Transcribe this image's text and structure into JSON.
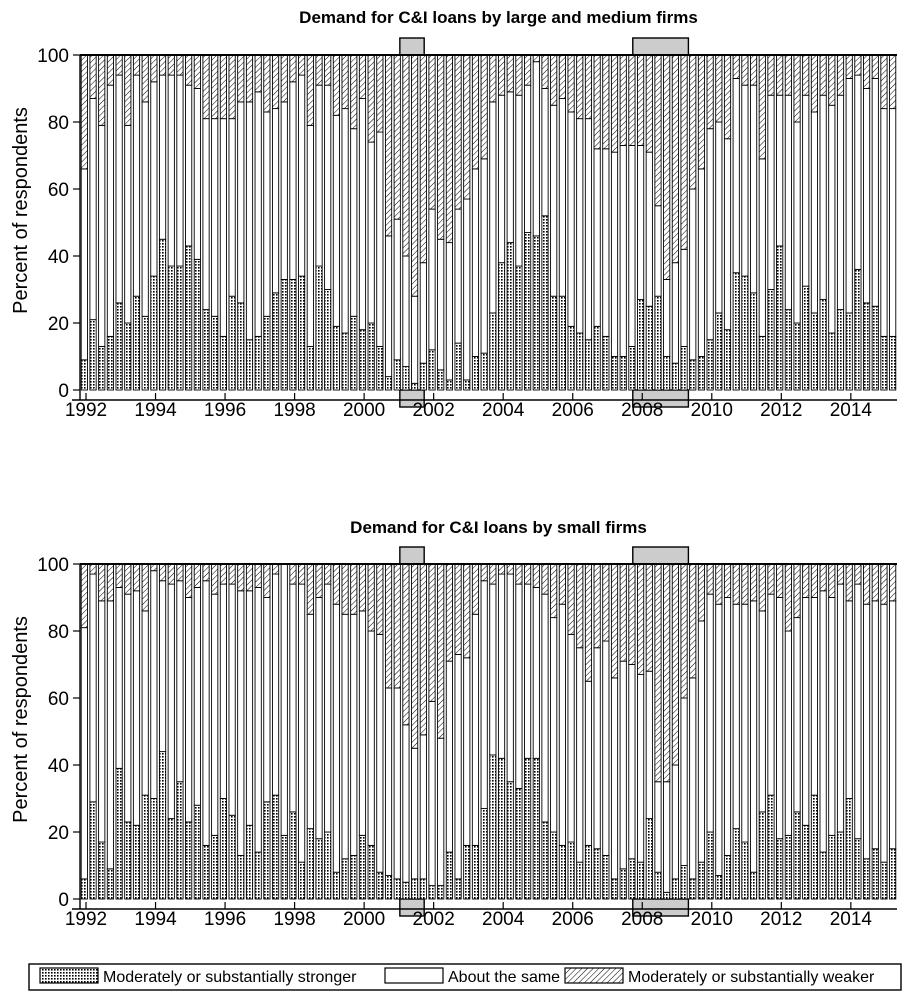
{
  "colors": {
    "ink": "#000000",
    "recession": "#cccccc",
    "background": "#ffffff"
  },
  "legend": {
    "items": [
      {
        "label": "Moderately or substantially stronger",
        "pattern": "dots"
      },
      {
        "label": "About the same",
        "pattern": "white"
      },
      {
        "label": "Moderately or substantially weaker",
        "pattern": "hatch"
      }
    ]
  },
  "chart_data": [
    {
      "type": "bar",
      "stacked": true,
      "title": "Demand for C&I loans by large and medium firms",
      "ylabel": "Percent of respondents",
      "xlabel": "",
      "xlim": [
        1992,
        2015.5
      ],
      "ylim": [
        0,
        100
      ],
      "x_ticks": [
        "1992",
        "1994",
        "1996",
        "1998",
        "2000",
        "2002",
        "2004",
        "2006",
        "2008",
        "2010",
        "2012",
        "2014"
      ],
      "y_ticks": [
        "0",
        "20",
        "40",
        "60",
        "80",
        "100"
      ],
      "grid": false,
      "recessions": [
        [
          2001.2,
          2001.9
        ],
        [
          2007.9,
          2009.5
        ]
      ],
      "x": [
        1992.0,
        1992.25,
        1992.5,
        1992.75,
        1993.0,
        1993.25,
        1993.5,
        1993.75,
        1994.0,
        1994.25,
        1994.5,
        1994.75,
        1995.0,
        1995.25,
        1995.5,
        1995.75,
        1996.0,
        1996.25,
        1996.5,
        1996.75,
        1997.0,
        1997.25,
        1997.5,
        1997.75,
        1998.0,
        1998.25,
        1998.5,
        1998.75,
        1999.0,
        1999.25,
        1999.5,
        1999.75,
        2000.0,
        2000.25,
        2000.5,
        2000.75,
        2001.0,
        2001.25,
        2001.5,
        2001.75,
        2002.0,
        2002.25,
        2002.5,
        2002.75,
        2003.0,
        2003.25,
        2003.5,
        2003.75,
        2004.0,
        2004.25,
        2004.5,
        2004.75,
        2005.0,
        2005.25,
        2005.5,
        2005.75,
        2006.0,
        2006.25,
        2006.5,
        2006.75,
        2007.0,
        2007.25,
        2007.5,
        2007.75,
        2008.0,
        2008.25,
        2008.5,
        2008.75,
        2009.0,
        2009.25,
        2009.5,
        2009.75,
        2010.0,
        2010.25,
        2010.5,
        2010.75,
        2011.0,
        2011.25,
        2011.5,
        2011.75,
        2012.0,
        2012.25,
        2012.5,
        2012.75,
        2013.0,
        2013.25,
        2013.5,
        2013.75,
        2014.0,
        2014.25,
        2014.5,
        2014.75,
        2015.0,
        2015.25
      ],
      "series": [
        {
          "name": "Moderately or substantially stronger",
          "pattern": "dots",
          "values": [
            9,
            21,
            13,
            16,
            26,
            20,
            28,
            22,
            34,
            45,
            37,
            37,
            43,
            39,
            24,
            22,
            16,
            28,
            26,
            15,
            16,
            22,
            29,
            33,
            33,
            34,
            13,
            37,
            30,
            19,
            17,
            22,
            18,
            20,
            13,
            4,
            9,
            7,
            2,
            8,
            12,
            6,
            3,
            14,
            3,
            10,
            11,
            23,
            38,
            44,
            37,
            47,
            46,
            52,
            28,
            28,
            19,
            17,
            15,
            19,
            16,
            10,
            10,
            13,
            27,
            25,
            28,
            10,
            8,
            13,
            9,
            10,
            15,
            23,
            18,
            35,
            34,
            29,
            16,
            30,
            43,
            24,
            20,
            31,
            23,
            27,
            17,
            24,
            23,
            36,
            26,
            25,
            16,
            16
          ]
        },
        {
          "name": "About the same",
          "pattern": "white",
          "values": [
            57,
            66,
            66,
            75,
            68,
            59,
            66,
            64,
            58,
            49,
            57,
            57,
            48,
            51,
            57,
            59,
            65,
            53,
            60,
            71,
            73,
            61,
            55,
            53,
            59,
            60,
            66,
            54,
            61,
            63,
            67,
            56,
            69,
            54,
            64,
            42,
            42,
            33,
            26,
            30,
            42,
            39,
            41,
            40,
            54,
            56,
            58,
            63,
            50,
            45,
            51,
            44,
            52,
            38,
            57,
            59,
            64,
            64,
            66,
            53,
            56,
            61,
            63,
            60,
            46,
            46,
            27,
            23,
            30,
            29,
            51,
            56,
            63,
            57,
            57,
            58,
            57,
            62,
            53,
            58,
            45,
            64,
            60,
            57,
            60,
            61,
            68,
            64,
            70,
            58,
            64,
            68,
            68,
            68
          ]
        },
        {
          "name": "Moderately or substantially weaker",
          "pattern": "hatch",
          "values": [
            34,
            13,
            21,
            9,
            6,
            21,
            6,
            14,
            8,
            6,
            6,
            6,
            9,
            10,
            19,
            19,
            19,
            19,
            14,
            14,
            11,
            17,
            16,
            14,
            8,
            6,
            21,
            9,
            9,
            18,
            16,
            22,
            13,
            26,
            23,
            54,
            49,
            60,
            72,
            62,
            46,
            55,
            56,
            46,
            43,
            34,
            31,
            14,
            12,
            11,
            12,
            9,
            2,
            10,
            15,
            13,
            17,
            19,
            19,
            28,
            28,
            29,
            27,
            27,
            27,
            29,
            45,
            67,
            62,
            58,
            40,
            34,
            22,
            20,
            25,
            7,
            9,
            9,
            31,
            12,
            12,
            12,
            20,
            12,
            17,
            12,
            15,
            12,
            7,
            6,
            10,
            7,
            16,
            16
          ]
        }
      ]
    },
    {
      "type": "bar",
      "stacked": true,
      "title": "Demand for C&I loans by small firms",
      "ylabel": "Percent of respondents",
      "xlabel": "",
      "xlim": [
        1992,
        2015.5
      ],
      "ylim": [
        0,
        100
      ],
      "x_ticks": [
        "1992",
        "1994",
        "1996",
        "1998",
        "2000",
        "2002",
        "2004",
        "2006",
        "2008",
        "2010",
        "2012",
        "2014"
      ],
      "y_ticks": [
        "0",
        "20",
        "40",
        "60",
        "80",
        "100"
      ],
      "grid": false,
      "recessions": [
        [
          2001.2,
          2001.9
        ],
        [
          2007.9,
          2009.5
        ]
      ],
      "x": [
        1992.0,
        1992.25,
        1992.5,
        1992.75,
        1993.0,
        1993.25,
        1993.5,
        1993.75,
        1994.0,
        1994.25,
        1994.5,
        1994.75,
        1995.0,
        1995.25,
        1995.5,
        1995.75,
        1996.0,
        1996.25,
        1996.5,
        1996.75,
        1997.0,
        1997.25,
        1997.5,
        1997.75,
        1998.0,
        1998.25,
        1998.5,
        1998.75,
        1999.0,
        1999.25,
        1999.5,
        1999.75,
        2000.0,
        2000.25,
        2000.5,
        2000.75,
        2001.0,
        2001.25,
        2001.5,
        2001.75,
        2002.0,
        2002.25,
        2002.5,
        2002.75,
        2003.0,
        2003.25,
        2003.5,
        2003.75,
        2004.0,
        2004.25,
        2004.5,
        2004.75,
        2005.0,
        2005.25,
        2005.5,
        2005.75,
        2006.0,
        2006.25,
        2006.5,
        2006.75,
        2007.0,
        2007.25,
        2007.5,
        2007.75,
        2008.0,
        2008.25,
        2008.5,
        2008.75,
        2009.0,
        2009.25,
        2009.5,
        2009.75,
        2010.0,
        2010.25,
        2010.5,
        2010.75,
        2011.0,
        2011.25,
        2011.5,
        2011.75,
        2012.0,
        2012.25,
        2012.5,
        2012.75,
        2013.0,
        2013.25,
        2013.5,
        2013.75,
        2014.0,
        2014.25,
        2014.5,
        2014.75,
        2015.0,
        2015.25
      ],
      "series": [
        {
          "name": "Moderately or substantially stronger",
          "pattern": "dots",
          "values": [
            6,
            29,
            17,
            9,
            39,
            23,
            22,
            31,
            30,
            44,
            24,
            35,
            23,
            28,
            16,
            19,
            30,
            25,
            13,
            22,
            14,
            29,
            31,
            19,
            26,
            11,
            21,
            18,
            20,
            8,
            12,
            13,
            19,
            16,
            8,
            7,
            6,
            5,
            6,
            6,
            4,
            4,
            14,
            6,
            16,
            16,
            27,
            43,
            42,
            35,
            33,
            42,
            42,
            23,
            20,
            16,
            17,
            11,
            16,
            15,
            13,
            6,
            9,
            12,
            11,
            24,
            8,
            2,
            6,
            10,
            6,
            11,
            20,
            7,
            13,
            21,
            17,
            8,
            26,
            31,
            18,
            19,
            26,
            22,
            31,
            14,
            19,
            20,
            30,
            18,
            12,
            15,
            11,
            15
          ]
        },
        {
          "name": "About the same",
          "pattern": "white",
          "values": [
            75,
            68,
            72,
            80,
            54,
            68,
            70,
            55,
            68,
            51,
            70,
            60,
            67,
            65,
            79,
            72,
            64,
            69,
            79,
            70,
            79,
            61,
            66,
            81,
            68,
            83,
            64,
            72,
            74,
            80,
            73,
            72,
            67,
            64,
            71,
            56,
            57,
            47,
            39,
            43,
            55,
            44,
            57,
            67,
            56,
            69,
            68,
            51,
            55,
            62,
            61,
            52,
            51,
            68,
            64,
            72,
            62,
            64,
            49,
            60,
            64,
            60,
            62,
            58,
            56,
            44,
            27,
            33,
            34,
            50,
            60,
            72,
            71,
            81,
            77,
            67,
            71,
            81,
            60,
            60,
            72,
            61,
            58,
            68,
            59,
            78,
            71,
            74,
            59,
            76,
            76,
            74,
            77,
            74
          ]
        },
        {
          "name": "Moderately or substantially weaker",
          "pattern": "hatch",
          "values": [
            19,
            3,
            11,
            11,
            7,
            9,
            8,
            14,
            2,
            5,
            6,
            5,
            10,
            7,
            5,
            9,
            6,
            6,
            8,
            8,
            7,
            10,
            3,
            0,
            6,
            6,
            15,
            10,
            6,
            12,
            15,
            15,
            14,
            20,
            21,
            37,
            37,
            48,
            55,
            51,
            41,
            52,
            29,
            27,
            28,
            15,
            5,
            6,
            3,
            3,
            6,
            6,
            7,
            9,
            16,
            12,
            21,
            25,
            35,
            25,
            23,
            34,
            29,
            30,
            33,
            32,
            65,
            65,
            60,
            40,
            34,
            17,
            9,
            12,
            10,
            12,
            12,
            11,
            14,
            9,
            10,
            20,
            16,
            10,
            10,
            8,
            10,
            6,
            11,
            6,
            12,
            11,
            12,
            11
          ]
        }
      ]
    }
  ]
}
